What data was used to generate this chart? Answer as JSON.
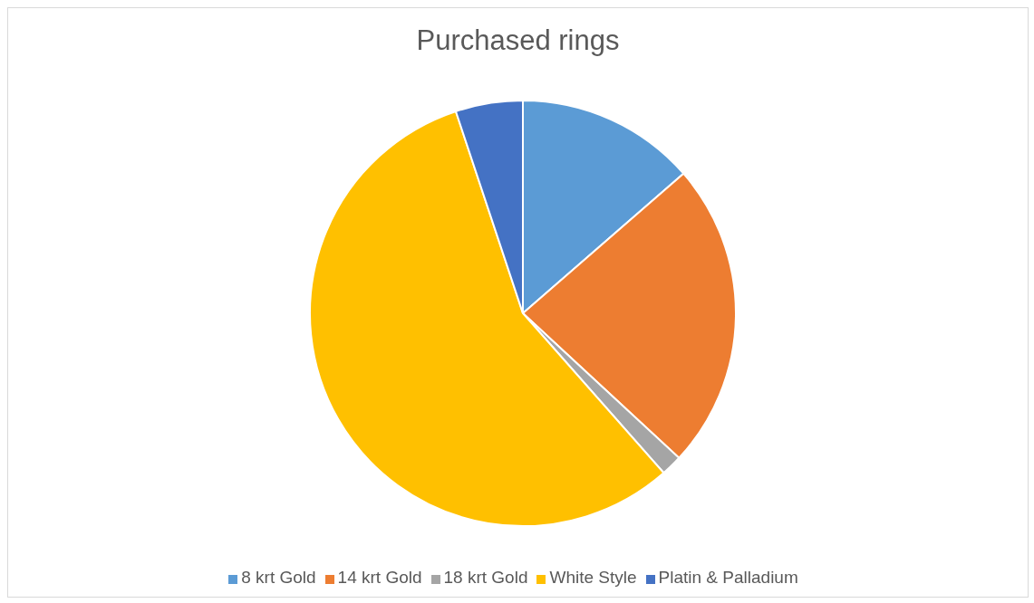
{
  "chart_data": {
    "type": "pie",
    "title": "Purchased rings",
    "categories": [
      "8 krt Gold",
      "14 krt Gold",
      "18 krt Gold",
      "White Style",
      "Platin & Palladium"
    ],
    "values": [
      13.6,
      23.3,
      1.6,
      56.4,
      5.1
    ],
    "colors": [
      "#5b9bd5",
      "#ed7d31",
      "#a5a5a5",
      "#ffc000",
      "#4472c4"
    ],
    "legend": "bottom"
  }
}
